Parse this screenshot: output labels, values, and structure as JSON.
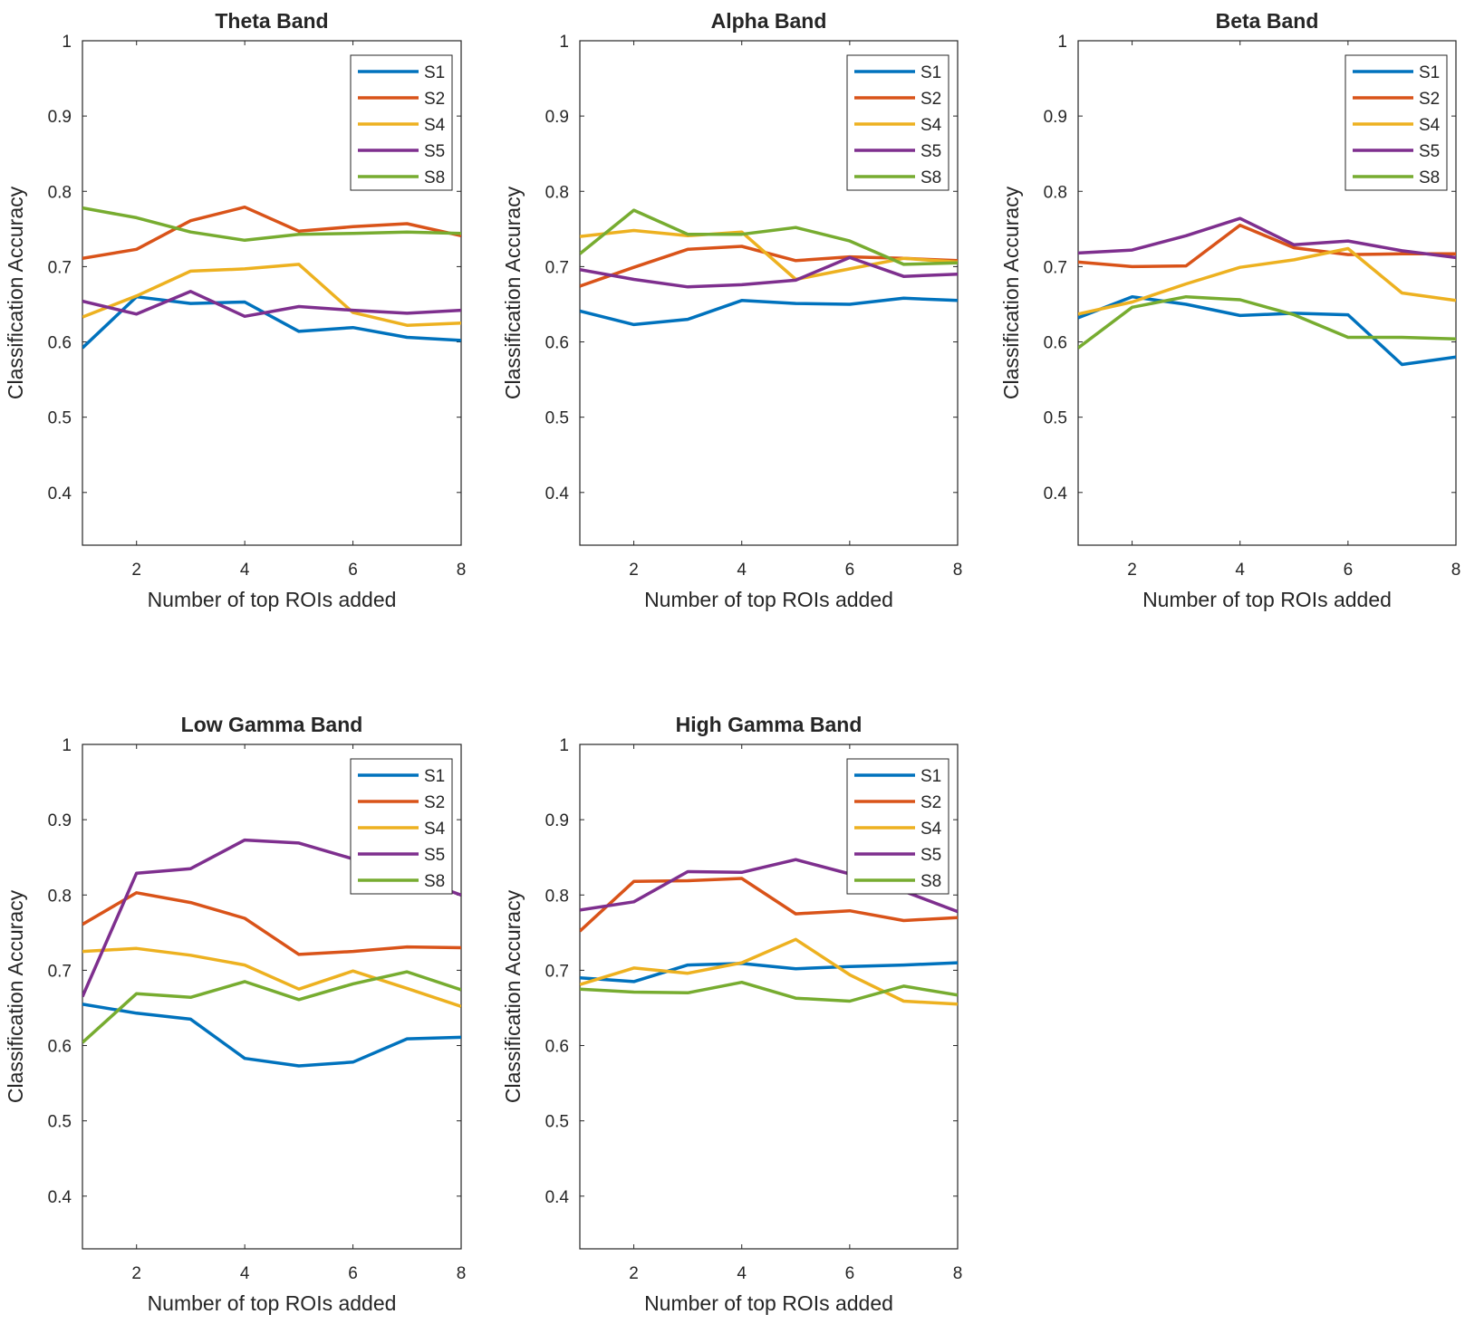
{
  "chart_data": [
    {
      "type": "line",
      "title": "Theta Band",
      "xlabel": "Number of top ROIs added",
      "ylabel": "Classification Accuracy",
      "x": [
        1,
        2,
        3,
        4,
        5,
        6,
        7,
        8
      ],
      "xlim": [
        1,
        8
      ],
      "ylim": [
        0.33,
        1
      ],
      "xticks": [
        2,
        4,
        6,
        8
      ],
      "yticks": [
        0.4,
        0.5,
        0.6,
        0.7,
        0.8,
        0.9,
        1
      ],
      "legend": "top-right",
      "series": [
        {
          "name": "S1",
          "color": "#0072BD",
          "values": [
            0.592,
            0.66,
            0.651,
            0.653,
            0.614,
            0.619,
            0.606,
            0.602
          ]
        },
        {
          "name": "S2",
          "color": "#D95319",
          "values": [
            0.711,
            0.723,
            0.761,
            0.779,
            0.747,
            0.753,
            0.757,
            0.741
          ]
        },
        {
          "name": "S4",
          "color": "#EDB120",
          "values": [
            0.633,
            0.661,
            0.694,
            0.697,
            0.703,
            0.639,
            0.622,
            0.625
          ]
        },
        {
          "name": "S5",
          "color": "#7E2F8E",
          "values": [
            0.654,
            0.637,
            0.667,
            0.634,
            0.647,
            0.642,
            0.638,
            0.642
          ]
        },
        {
          "name": "S8",
          "color": "#77AC30",
          "values": [
            0.778,
            0.765,
            0.746,
            0.735,
            0.743,
            0.744,
            0.746,
            0.744
          ]
        }
      ]
    },
    {
      "type": "line",
      "title": "Alpha Band",
      "xlabel": "Number of top ROIs added",
      "ylabel": "Classification Accuracy",
      "x": [
        1,
        2,
        3,
        4,
        5,
        6,
        7,
        8
      ],
      "xlim": [
        1,
        8
      ],
      "ylim": [
        0.33,
        1
      ],
      "xticks": [
        2,
        4,
        6,
        8
      ],
      "yticks": [
        0.4,
        0.5,
        0.6,
        0.7,
        0.8,
        0.9,
        1
      ],
      "legend": "top-right",
      "series": [
        {
          "name": "S1",
          "color": "#0072BD",
          "values": [
            0.641,
            0.623,
            0.63,
            0.655,
            0.651,
            0.65,
            0.658,
            0.655
          ]
        },
        {
          "name": "S2",
          "color": "#D95319",
          "values": [
            0.674,
            0.699,
            0.723,
            0.727,
            0.708,
            0.713,
            0.711,
            0.708
          ]
        },
        {
          "name": "S4",
          "color": "#EDB120",
          "values": [
            0.74,
            0.748,
            0.741,
            0.746,
            0.683,
            0.697,
            0.711,
            0.706
          ]
        },
        {
          "name": "S5",
          "color": "#7E2F8E",
          "values": [
            0.696,
            0.683,
            0.673,
            0.676,
            0.682,
            0.712,
            0.687,
            0.69
          ]
        },
        {
          "name": "S8",
          "color": "#77AC30",
          "values": [
            0.717,
            0.775,
            0.743,
            0.743,
            0.752,
            0.734,
            0.703,
            0.705
          ]
        }
      ]
    },
    {
      "type": "line",
      "title": "Beta Band",
      "xlabel": "Number of top ROIs added",
      "ylabel": "Classification Accuracy",
      "x": [
        1,
        2,
        3,
        4,
        5,
        6,
        7,
        8
      ],
      "xlim": [
        1,
        8
      ],
      "ylim": [
        0.33,
        1
      ],
      "xticks": [
        2,
        4,
        6,
        8
      ],
      "yticks": [
        0.4,
        0.5,
        0.6,
        0.7,
        0.8,
        0.9,
        1
      ],
      "legend": "top-right",
      "series": [
        {
          "name": "S1",
          "color": "#0072BD",
          "values": [
            0.632,
            0.66,
            0.65,
            0.635,
            0.638,
            0.636,
            0.57,
            0.58
          ]
        },
        {
          "name": "S2",
          "color": "#D95319",
          "values": [
            0.706,
            0.7,
            0.701,
            0.755,
            0.725,
            0.716,
            0.717,
            0.717
          ]
        },
        {
          "name": "S4",
          "color": "#EDB120",
          "values": [
            0.637,
            0.653,
            0.677,
            0.699,
            0.709,
            0.724,
            0.665,
            0.655
          ]
        },
        {
          "name": "S5",
          "color": "#7E2F8E",
          "values": [
            0.718,
            0.722,
            0.741,
            0.764,
            0.729,
            0.734,
            0.721,
            0.712
          ]
        },
        {
          "name": "S8",
          "color": "#77AC30",
          "values": [
            0.592,
            0.646,
            0.66,
            0.656,
            0.636,
            0.606,
            0.606,
            0.604
          ]
        }
      ]
    },
    {
      "type": "line",
      "title": "Low Gamma Band",
      "xlabel": "Number of top ROIs added",
      "ylabel": "Classification Accuracy",
      "x": [
        1,
        2,
        3,
        4,
        5,
        6,
        7,
        8
      ],
      "xlim": [
        1,
        8
      ],
      "ylim": [
        0.33,
        1
      ],
      "xticks": [
        2,
        4,
        6,
        8
      ],
      "yticks": [
        0.4,
        0.5,
        0.6,
        0.7,
        0.8,
        0.9,
        1
      ],
      "legend": "top-right",
      "series": [
        {
          "name": "S1",
          "color": "#0072BD",
          "values": [
            0.655,
            0.643,
            0.635,
            0.583,
            0.573,
            0.578,
            0.609,
            0.611
          ]
        },
        {
          "name": "S2",
          "color": "#D95319",
          "values": [
            0.761,
            0.803,
            0.79,
            0.769,
            0.721,
            0.725,
            0.731,
            0.73
          ]
        },
        {
          "name": "S4",
          "color": "#EDB120",
          "values": [
            0.725,
            0.729,
            0.72,
            0.707,
            0.675,
            0.699,
            0.676,
            0.652
          ]
        },
        {
          "name": "S5",
          "color": "#7E2F8E",
          "values": [
            0.665,
            0.829,
            0.835,
            0.873,
            0.869,
            0.848,
            0.826,
            0.8
          ]
        },
        {
          "name": "S8",
          "color": "#77AC30",
          "values": [
            0.604,
            0.669,
            0.664,
            0.685,
            0.661,
            0.682,
            0.698,
            0.674
          ]
        }
      ]
    },
    {
      "type": "line",
      "title": "High Gamma Band",
      "xlabel": "Number of top ROIs added",
      "ylabel": "Classification Accuracy",
      "x": [
        1,
        2,
        3,
        4,
        5,
        6,
        7,
        8
      ],
      "xlim": [
        1,
        8
      ],
      "ylim": [
        0.33,
        1
      ],
      "xticks": [
        2,
        4,
        6,
        8
      ],
      "yticks": [
        0.4,
        0.5,
        0.6,
        0.7,
        0.8,
        0.9,
        1
      ],
      "legend": "top-right",
      "series": [
        {
          "name": "S1",
          "color": "#0072BD",
          "values": [
            0.69,
            0.685,
            0.707,
            0.709,
            0.702,
            0.705,
            0.707,
            0.71
          ]
        },
        {
          "name": "S2",
          "color": "#D95319",
          "values": [
            0.752,
            0.818,
            0.819,
            0.822,
            0.775,
            0.779,
            0.766,
            0.77
          ]
        },
        {
          "name": "S4",
          "color": "#EDB120",
          "values": [
            0.681,
            0.703,
            0.696,
            0.71,
            0.741,
            0.694,
            0.659,
            0.655
          ]
        },
        {
          "name": "S5",
          "color": "#7E2F8E",
          "values": [
            0.78,
            0.791,
            0.831,
            0.83,
            0.847,
            0.828,
            0.805,
            0.778
          ]
        },
        {
          "name": "S8",
          "color": "#77AC30",
          "values": [
            0.675,
            0.671,
            0.67,
            0.684,
            0.663,
            0.659,
            0.679,
            0.667
          ]
        }
      ]
    }
  ]
}
